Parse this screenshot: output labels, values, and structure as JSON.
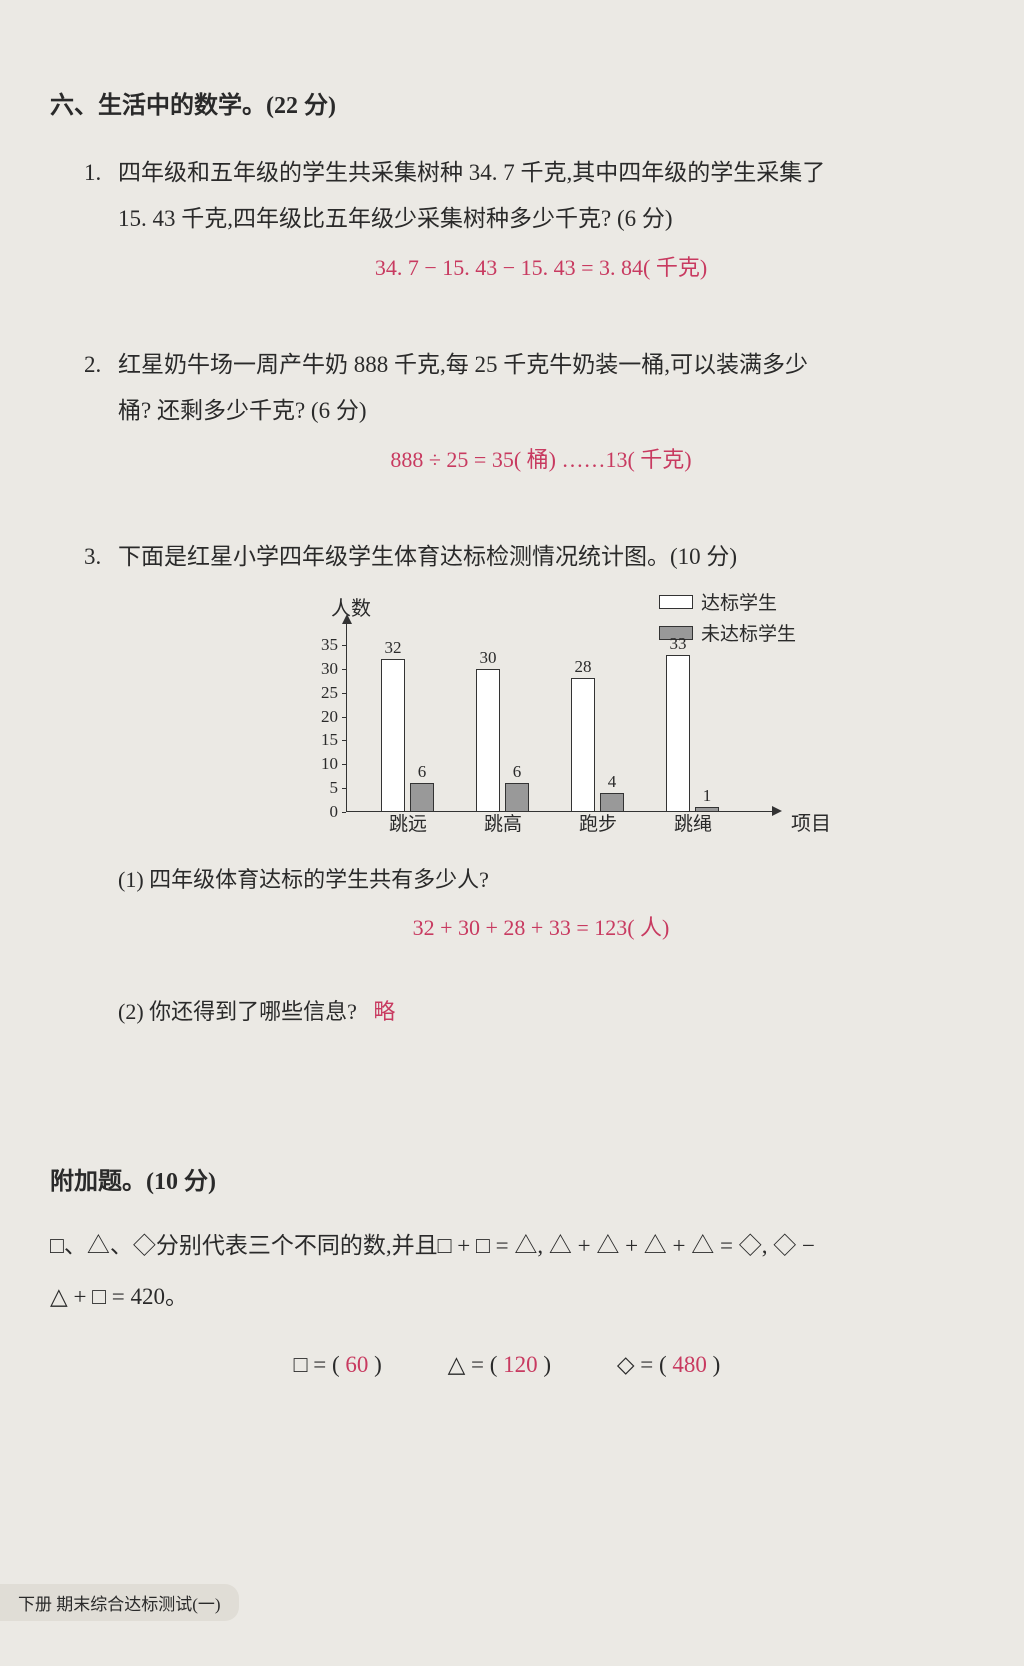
{
  "section6": {
    "title": "六、生活中的数学。(22 分)",
    "q1": {
      "num": "1.",
      "text1": "四年级和五年级的学生共采集树种 34. 7 千克,其中四年级的学生采集了",
      "text2": "15. 43 千克,四年级比五年级少采集树种多少千克? (6 分)",
      "answer": "34. 7 − 15. 43 − 15. 43 = 3. 84( 千克)"
    },
    "q2": {
      "num": "2.",
      "text1": "红星奶牛场一周产牛奶 888 千克,每 25 千克牛奶装一桶,可以装满多少",
      "text2": "桶? 还剩多少千克? (6 分)",
      "answer": "888 ÷ 25 = 35( 桶) ……13( 千克)"
    },
    "q3": {
      "num": "3.",
      "text": "下面是红星小学四年级学生体育达标检测情况统计图。(10 分)",
      "chart": {
        "y_label": "人数",
        "x_label": "项目",
        "legend_pass": "达标学生",
        "legend_fail": "未达标学生",
        "y_max": 35,
        "y_ticks": [
          0,
          5,
          10,
          15,
          20,
          25,
          30,
          35
        ],
        "categories": [
          "跳远",
          "跳高",
          "跑步",
          "跳绳"
        ],
        "pass_values": [
          32,
          30,
          28,
          33
        ],
        "fail_values": [
          6,
          6,
          4,
          1
        ],
        "bar_white_color": "#ffffff",
        "bar_gray_color": "#999999",
        "axis_color": "#333333"
      },
      "sub1": {
        "q": "(1) 四年级体育达标的学生共有多少人?",
        "answer": "32 + 30 + 28 + 33 = 123( 人)"
      },
      "sub2": {
        "q": "(2) 你还得到了哪些信息?",
        "answer": "略"
      }
    }
  },
  "bonus": {
    "title": "附加题。(10 分)",
    "line1_pre": "□、△、◇分别代表三个不同的数,并且□ + □ = △, △ + △ + △ + △ = ◇, ◇ −",
    "line2": "△ + □ = 420。",
    "blank_sq": "□ = (",
    "blank_tr": "△ = (",
    "blank_di": "◇ = (",
    "close": ")",
    "ans_sq": "60",
    "ans_tr": "120",
    "ans_di": "480"
  },
  "footer": "下册  期末综合达标测试(一)"
}
